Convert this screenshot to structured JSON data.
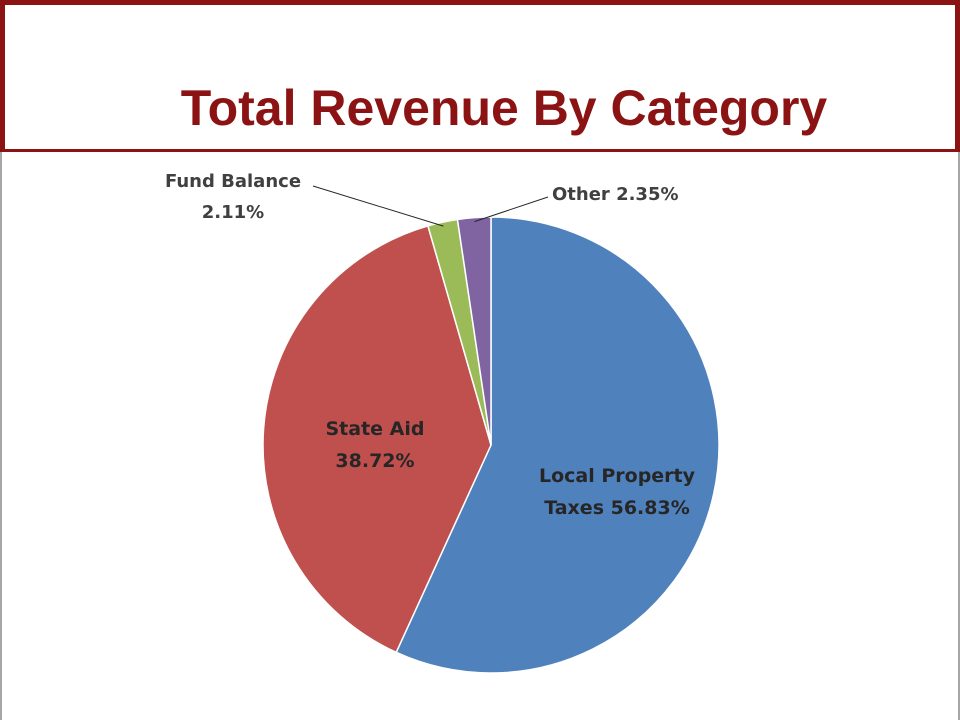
{
  "slide": {
    "title": "Total Revenue By Category"
  },
  "colors": {
    "title": "#8b1313",
    "border": "#8b1313"
  },
  "chart_data": {
    "type": "pie",
    "title": "",
    "slices": [
      {
        "name": "Local Property Taxes",
        "value": 56.83,
        "label_line1": "Local Property",
        "label_line2": "Taxes 56.83%",
        "color": "#4f81bd"
      },
      {
        "name": "State Aid",
        "value": 38.72,
        "label_line1": "State Aid",
        "label_line2": "38.72%",
        "color": "#c0504d"
      },
      {
        "name": "Fund Balance",
        "value": 2.11,
        "label_line1": "Fund Balance",
        "label_line2": "2.11%",
        "color": "#9bbb59"
      },
      {
        "name": "Other",
        "value": 2.35,
        "label_line1": "Other 2.35%",
        "label_line2": "",
        "color": "#8064a2"
      }
    ],
    "start_angle": "12 o'clock",
    "direction": "clockwise",
    "legend": "none"
  }
}
